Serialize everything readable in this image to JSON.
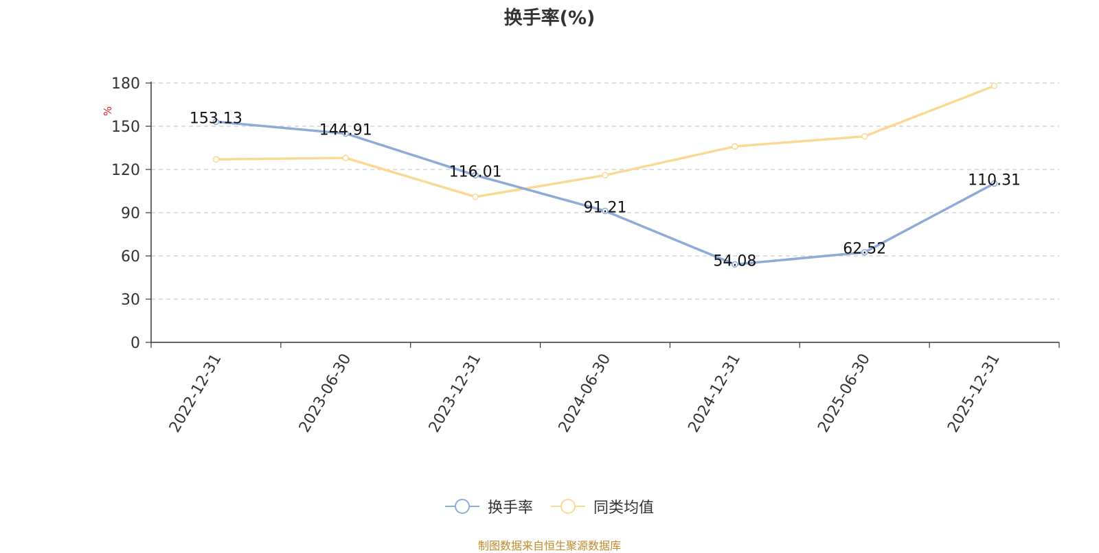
{
  "chart_data": {
    "type": "line",
    "title": "换手率(%)",
    "ylabel": "%",
    "xlabel": "",
    "categories": [
      "2022-12-31",
      "2023-06-30",
      "2023-12-31",
      "2024-06-30",
      "2024-12-31",
      "2025-06-30",
      "2025-12-31"
    ],
    "ylim": [
      0,
      180
    ],
    "yticks": [
      0,
      30,
      60,
      90,
      120,
      150,
      180
    ],
    "grid": true,
    "legend_position": "bottom-center",
    "series": [
      {
        "name": "换手率",
        "color": "#8eaad8",
        "show_labels": true,
        "values": [
          153.13,
          144.91,
          116.01,
          91.21,
          54.08,
          62.52,
          110.31
        ]
      },
      {
        "name": "同类均值",
        "color": "#fad994",
        "show_labels": false,
        "values": [
          127,
          128,
          101,
          116,
          136,
          143,
          178
        ]
      }
    ]
  },
  "footer": {
    "source": "制图数据来自恒生聚源数据库"
  }
}
